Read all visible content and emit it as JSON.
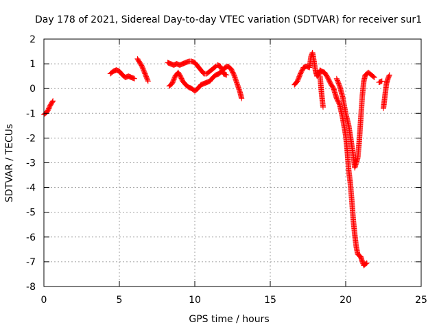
{
  "chart_data": {
    "type": "scatter",
    "title": "Day 178 of 2021, Sidereal Day-to-day VTEC variation (SDTVAR) for receiver sur1",
    "xlabel": "GPS time / hours",
    "ylabel": "SDTVAR / TECUs",
    "xlim": [
      0,
      25
    ],
    "ylim": [
      -8,
      2
    ],
    "xticks": [
      0,
      5,
      10,
      15,
      20,
      25
    ],
    "yticks": [
      2,
      1,
      0,
      -1,
      -2,
      -3,
      -4,
      -5,
      -6,
      -7,
      -8
    ],
    "grid": true,
    "marker": "+",
    "series": [
      {
        "name": "SDTVAR",
        "color": "#ff0000",
        "segments": [
          [
            [
              0.0,
              -1.05
            ],
            [
              0.1,
              -1.0
            ],
            [
              0.2,
              -0.95
            ],
            [
              0.3,
              -0.85
            ],
            [
              0.4,
              -0.7
            ],
            [
              0.5,
              -0.6
            ],
            [
              0.6,
              -0.5
            ]
          ],
          [
            [
              4.4,
              0.6
            ],
            [
              4.6,
              0.7
            ],
            [
              4.8,
              0.75
            ],
            [
              5.0,
              0.7
            ],
            [
              5.2,
              0.55
            ],
            [
              5.4,
              0.45
            ],
            [
              5.6,
              0.5
            ],
            [
              5.8,
              0.45
            ],
            [
              6.0,
              0.4
            ]
          ],
          [
            [
              6.2,
              1.2
            ],
            [
              6.3,
              1.1
            ],
            [
              6.5,
              0.9
            ],
            [
              6.7,
              0.6
            ],
            [
              6.9,
              0.3
            ]
          ],
          [
            [
              8.2,
              1.05
            ],
            [
              8.4,
              1.0
            ],
            [
              8.6,
              0.95
            ],
            [
              8.8,
              1.0
            ],
            [
              9.0,
              0.95
            ],
            [
              9.2,
              1.0
            ],
            [
              9.4,
              1.05
            ],
            [
              9.6,
              1.1
            ],
            [
              9.8,
              1.1
            ],
            [
              10.0,
              1.05
            ],
            [
              10.2,
              0.9
            ],
            [
              10.4,
              0.75
            ],
            [
              10.6,
              0.6
            ],
            [
              10.8,
              0.6
            ],
            [
              11.0,
              0.7
            ],
            [
              11.2,
              0.8
            ],
            [
              11.4,
              0.9
            ]
          ],
          [
            [
              8.3,
              0.1
            ],
            [
              8.5,
              0.2
            ],
            [
              8.7,
              0.5
            ],
            [
              8.9,
              0.65
            ],
            [
              9.0,
              0.55
            ],
            [
              9.2,
              0.3
            ],
            [
              9.4,
              0.15
            ],
            [
              9.6,
              0.05
            ],
            [
              9.8,
              0.0
            ],
            [
              10.0,
              -0.1
            ],
            [
              10.2,
              0.0
            ],
            [
              10.4,
              0.15
            ],
            [
              10.6,
              0.2
            ],
            [
              10.8,
              0.25
            ],
            [
              11.0,
              0.3
            ],
            [
              11.2,
              0.45
            ],
            [
              11.4,
              0.55
            ],
            [
              11.6,
              0.6
            ],
            [
              11.8,
              0.7
            ],
            [
              12.0,
              0.85
            ],
            [
              12.2,
              0.9
            ],
            [
              12.4,
              0.8
            ],
            [
              12.6,
              0.55
            ],
            [
              12.8,
              0.2
            ],
            [
              13.0,
              -0.15
            ],
            [
              13.1,
              -0.4
            ]
          ],
          [
            [
              11.5,
              0.95
            ],
            [
              11.7,
              0.9
            ],
            [
              11.9,
              0.6
            ],
            [
              12.1,
              0.55
            ]
          ],
          [
            [
              16.6,
              0.15
            ],
            [
              16.8,
              0.3
            ],
            [
              17.0,
              0.6
            ],
            [
              17.2,
              0.85
            ],
            [
              17.4,
              0.9
            ],
            [
              17.6,
              0.85
            ],
            [
              17.7,
              1.3
            ],
            [
              17.8,
              1.45
            ],
            [
              17.9,
              1.1
            ],
            [
              18.0,
              0.7
            ],
            [
              18.1,
              0.5
            ],
            [
              18.2,
              0.55
            ],
            [
              18.3,
              0.75
            ],
            [
              18.4,
              0.7
            ],
            [
              18.6,
              0.65
            ],
            [
              18.8,
              0.45
            ],
            [
              19.0,
              0.2
            ],
            [
              19.2,
              0.0
            ],
            [
              19.4,
              -0.4
            ],
            [
              19.6,
              -0.65
            ],
            [
              19.8,
              -1.2
            ],
            [
              20.0,
              -1.9
            ],
            [
              20.1,
              -2.5
            ],
            [
              20.2,
              -3.3
            ],
            [
              20.3,
              -3.8
            ],
            [
              20.4,
              -4.5
            ],
            [
              20.5,
              -5.3
            ],
            [
              20.6,
              -5.9
            ],
            [
              20.7,
              -6.4
            ],
            [
              20.8,
              -6.7
            ],
            [
              21.0,
              -6.8
            ],
            [
              21.1,
              -7.0
            ],
            [
              21.2,
              -7.15
            ],
            [
              21.4,
              -7.05
            ]
          ],
          [
            [
              18.3,
              0.5
            ],
            [
              18.4,
              -0.2
            ],
            [
              18.5,
              -0.75
            ]
          ],
          [
            [
              19.4,
              0.4
            ],
            [
              19.6,
              0.1
            ],
            [
              19.8,
              -0.35
            ],
            [
              20.0,
              -1.0
            ],
            [
              20.2,
              -1.5
            ],
            [
              20.4,
              -2.3
            ],
            [
              20.5,
              -2.7
            ],
            [
              20.6,
              -3.2
            ],
            [
              20.8,
              -2.8
            ],
            [
              20.9,
              -2.1
            ],
            [
              21.0,
              -1.2
            ],
            [
              21.1,
              -0.3
            ],
            [
              21.2,
              0.3
            ],
            [
              21.3,
              0.55
            ],
            [
              21.5,
              0.65
            ],
            [
              21.7,
              0.55
            ],
            [
              21.9,
              0.45
            ]
          ],
          [
            [
              22.2,
              0.25
            ],
            [
              22.4,
              0.3
            ]
          ],
          [
            [
              22.5,
              -0.8
            ],
            [
              22.6,
              -0.3
            ],
            [
              22.7,
              0.2
            ],
            [
              22.8,
              0.4
            ],
            [
              22.9,
              0.55
            ]
          ]
        ]
      }
    ]
  }
}
